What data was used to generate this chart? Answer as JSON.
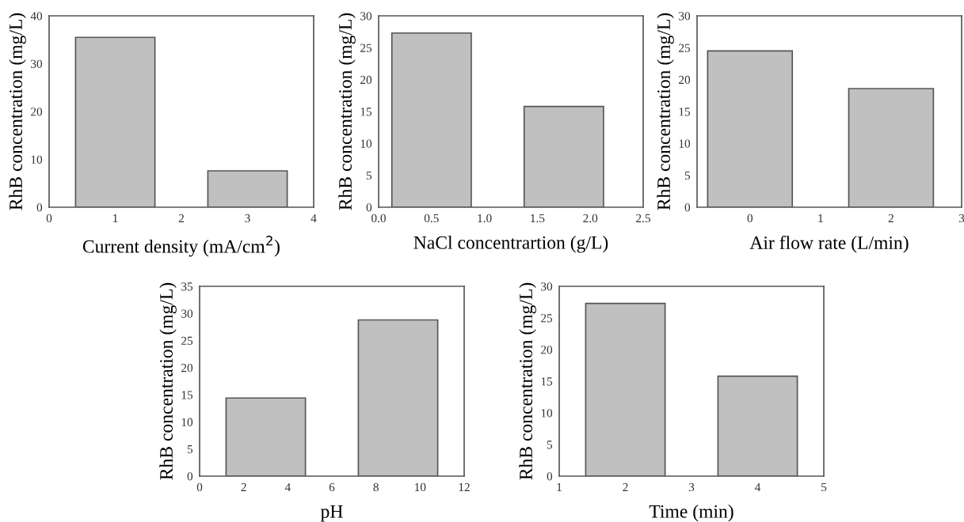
{
  "chart_data": [
    {
      "type": "bar",
      "xlabel": "Current density (mA/cm$^{2}$)",
      "ylabel": "RhB concentration (mg/L)",
      "x": [
        1,
        3
      ],
      "values": [
        35.5,
        7.6
      ],
      "color": "#c0c0c0",
      "xlim": [
        0,
        4
      ],
      "xticks": [
        0,
        1,
        2,
        3,
        4
      ],
      "ylim": [
        0,
        40
      ],
      "yticks": [
        0,
        10,
        20,
        30,
        40
      ]
    },
    {
      "type": "bar",
      "xlabel": "NaCl concentrartion (g/L)",
      "ylabel": "RhB concentration (mg/L)",
      "x": [
        0.5,
        1.75
      ],
      "values": [
        27.3,
        15.8
      ],
      "color": "#c0c0c0",
      "xlim": [
        0,
        2.5
      ],
      "xticks": [
        {
          "value": 0,
          "label": "0.0"
        },
        0.5,
        {
          "value": 1,
          "label": "1.0"
        },
        1.5,
        {
          "value": 2,
          "label": "2.0"
        },
        2.5
      ],
      "ylim": [
        0,
        30
      ],
      "yticks": [
        0,
        5,
        10,
        15,
        20,
        25,
        30
      ]
    },
    {
      "type": "bar",
      "xlabel": "Air flow rate (L/min)",
      "ylabel": "RhB concentration (mg/L)",
      "x": [
        0,
        2
      ],
      "values": [
        24.5,
        18.6
      ],
      "color": "#c0c0c0",
      "xlim": [
        -0.75,
        3
      ],
      "xticks": [
        0,
        1,
        2,
        3
      ],
      "ylim": [
        0,
        30
      ],
      "yticks": [
        0,
        5,
        10,
        15,
        20,
        25,
        30
      ]
    },
    {
      "type": "bar",
      "xlabel": "pH",
      "ylabel": "RhB concentration (mg/L)",
      "x": [
        3,
        9
      ],
      "values": [
        14.4,
        28.8
      ],
      "color": "#c0c0c0",
      "xlim": [
        0,
        12
      ],
      "xticks": [
        0,
        2,
        4,
        6,
        8,
        10,
        12
      ],
      "ylim": [
        0,
        35
      ],
      "yticks": [
        0,
        5,
        10,
        15,
        20,
        25,
        30,
        35
      ]
    },
    {
      "type": "bar",
      "xlabel": "Time (min)",
      "ylabel": "RhB concentration (mg/L)",
      "x": [
        2,
        4
      ],
      "values": [
        27.3,
        15.8
      ],
      "color": "#c0c0c0",
      "xlim": [
        1,
        5
      ],
      "xticks": [
        1,
        2,
        3,
        4,
        5
      ],
      "ylim": [
        0,
        30
      ],
      "yticks": [
        0,
        5,
        10,
        15,
        20,
        25,
        30
      ]
    }
  ]
}
